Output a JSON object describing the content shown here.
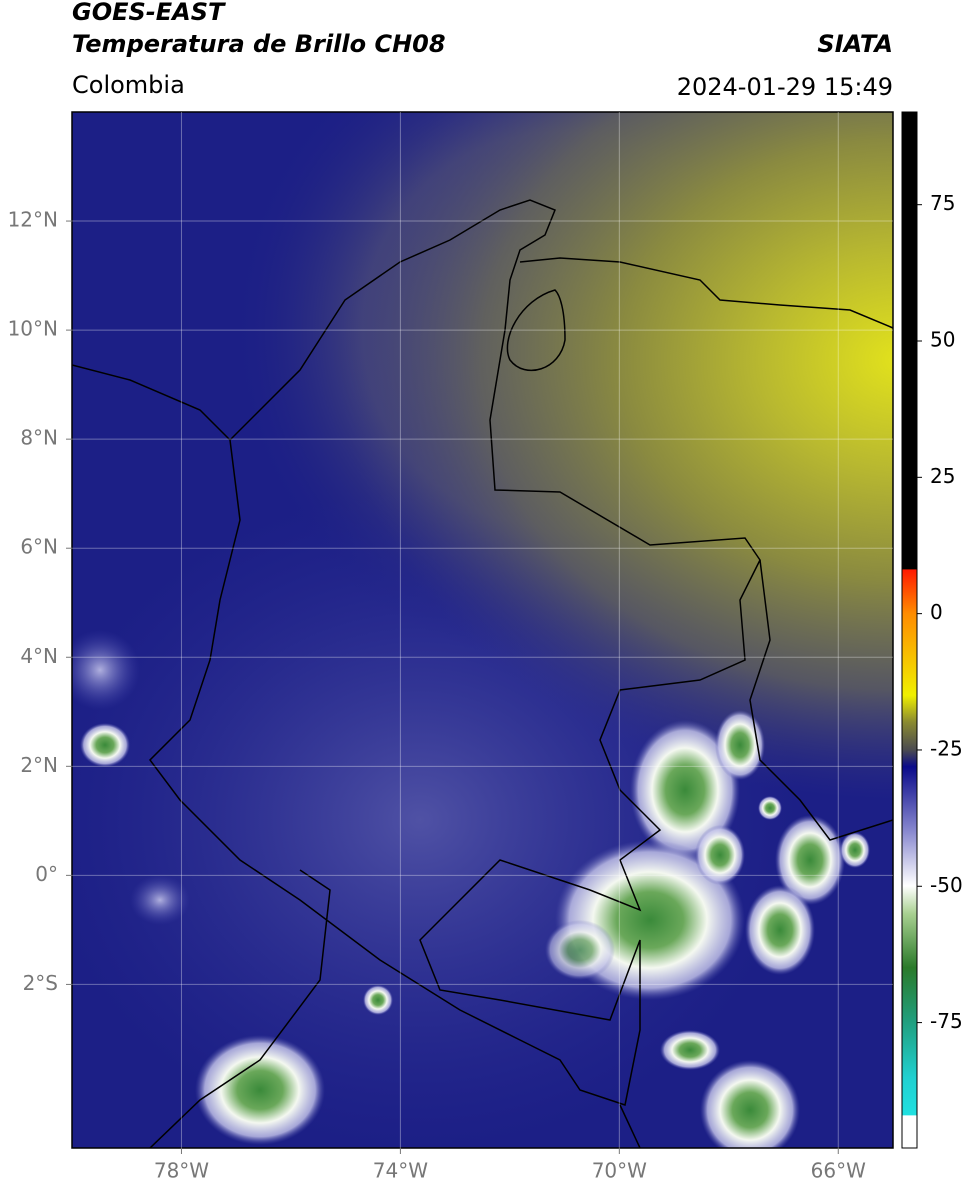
{
  "header": {
    "satellite": "GOES-EAST",
    "product": "Temperatura de Brillo CH08",
    "source": "SIATA",
    "region": "Colombia",
    "datetime": "2024-01-29 15:49"
  },
  "map": {
    "lon_range": [
      -80,
      -65
    ],
    "lat_range": [
      -5,
      14
    ],
    "lon_ticks": [
      {
        "value": -78,
        "label": "78°W"
      },
      {
        "value": -74,
        "label": "74°W"
      },
      {
        "value": -70,
        "label": "70°W"
      },
      {
        "value": -66,
        "label": "66°W"
      }
    ],
    "lat_ticks": [
      {
        "value": 12,
        "label": "12°N"
      },
      {
        "value": 10,
        "label": "10°N"
      },
      {
        "value": 8,
        "label": "8°N"
      },
      {
        "value": 6,
        "label": "6°N"
      },
      {
        "value": 4,
        "label": "4°N"
      },
      {
        "value": 2,
        "label": "2°N"
      },
      {
        "value": 0,
        "label": "0°"
      },
      {
        "value": -2,
        "label": "2°S"
      }
    ],
    "grid": true
  },
  "colorbar": {
    "range": [
      -98,
      92
    ],
    "ticks": [
      75,
      50,
      25,
      0,
      -25,
      -50,
      -75
    ]
  }
}
